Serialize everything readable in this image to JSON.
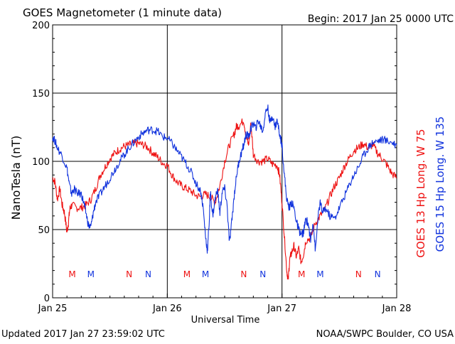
{
  "header": {
    "title": "GOES Magnetometer (1 minute data)",
    "begin": "Begin:  2017 Jan 25 0000 UTC"
  },
  "footer": {
    "updated": "Updated 2017 Jan 27 23:59:02 UTC",
    "credit": "NOAA/SWPC Boulder, CO USA"
  },
  "colors": {
    "goes13": "#ee1111",
    "goes15": "#1133dd",
    "grid": "#000000"
  },
  "chart_data": {
    "type": "line",
    "title": "GOES Magnetometer (1 minute data)",
    "xlabel": "Universal Time",
    "ylabel": "NanoTesla (nT)",
    "xlim": [
      0,
      72
    ],
    "ylim": [
      0,
      200
    ],
    "yticks": [
      0,
      50,
      100,
      150,
      200
    ],
    "xticks": [
      {
        "hour": 0,
        "label": "Jan 25"
      },
      {
        "hour": 24,
        "label": "Jan 26"
      },
      {
        "hour": 48,
        "label": "Jan 27"
      },
      {
        "hour": 72,
        "label": "Jan 28"
      }
    ],
    "grid": true,
    "markers": [
      {
        "hour": 4.1,
        "label": "M",
        "series": 0
      },
      {
        "hour": 8.0,
        "label": "M",
        "series": 1
      },
      {
        "hour": 16.0,
        "label": "N",
        "series": 0
      },
      {
        "hour": 20.0,
        "label": "N",
        "series": 1
      },
      {
        "hour": 28.1,
        "label": "M",
        "series": 0
      },
      {
        "hour": 32.0,
        "label": "M",
        "series": 1
      },
      {
        "hour": 40.0,
        "label": "N",
        "series": 0
      },
      {
        "hour": 44.0,
        "label": "N",
        "series": 1
      },
      {
        "hour": 52.1,
        "label": "M",
        "series": 0
      },
      {
        "hour": 56.0,
        "label": "M",
        "series": 1
      },
      {
        "hour": 64.0,
        "label": "N",
        "series": 0
      },
      {
        "hour": 68.0,
        "label": "N",
        "series": 1
      }
    ],
    "series": [
      {
        "name": "GOES 13 Hp  Long. W 75",
        "points": [
          [
            0,
            88
          ],
          [
            0.5,
            85
          ],
          [
            1,
            72
          ],
          [
            1.5,
            80
          ],
          [
            2,
            68
          ],
          [
            2.5,
            62
          ],
          [
            3,
            48
          ],
          [
            3.3,
            55
          ],
          [
            3.6,
            65
          ],
          [
            4,
            68
          ],
          [
            5,
            66
          ],
          [
            6,
            66
          ],
          [
            7,
            68
          ],
          [
            8,
            72
          ],
          [
            9,
            80
          ],
          [
            10,
            90
          ],
          [
            11,
            96
          ],
          [
            12,
            102
          ],
          [
            13,
            106
          ],
          [
            14,
            109
          ],
          [
            15,
            111
          ],
          [
            16,
            112
          ],
          [
            17,
            113
          ],
          [
            18,
            113
          ],
          [
            19,
            112
          ],
          [
            20,
            110
          ],
          [
            21,
            106
          ],
          [
            22,
            103
          ],
          [
            23,
            99
          ],
          [
            24,
            97
          ],
          [
            25,
            90
          ],
          [
            26,
            85
          ],
          [
            27,
            82
          ],
          [
            28,
            80
          ],
          [
            29,
            78
          ],
          [
            30,
            75
          ],
          [
            31,
            74
          ],
          [
            32,
            76
          ],
          [
            33,
            74
          ],
          [
            34,
            70
          ],
          [
            35,
            82
          ],
          [
            36,
            100
          ],
          [
            37,
            112
          ],
          [
            38,
            120
          ],
          [
            38.5,
            126
          ],
          [
            39,
            126
          ],
          [
            40,
            130
          ],
          [
            40.5,
            118
          ],
          [
            41,
            112
          ],
          [
            41.5,
            128
          ],
          [
            42,
            105
          ],
          [
            43,
            100
          ],
          [
            44,
            100
          ],
          [
            45,
            102
          ],
          [
            46,
            98
          ],
          [
            47,
            97
          ],
          [
            47.5,
            90
          ],
          [
            48,
            70
          ],
          [
            48.5,
            45
          ],
          [
            49,
            20
          ],
          [
            49.3,
            13
          ],
          [
            49.6,
            28
          ],
          [
            50,
            33
          ],
          [
            50.5,
            38
          ],
          [
            51,
            30
          ],
          [
            51.5,
            36
          ],
          [
            52,
            26
          ],
          [
            52.5,
            32
          ],
          [
            53,
            42
          ],
          [
            54,
            44
          ],
          [
            55,
            55
          ],
          [
            56,
            60
          ],
          [
            57,
            65
          ],
          [
            58,
            74
          ],
          [
            59,
            82
          ],
          [
            60,
            88
          ],
          [
            61,
            96
          ],
          [
            62,
            102
          ],
          [
            63,
            108
          ],
          [
            64,
            110
          ],
          [
            65,
            113
          ],
          [
            66,
            110
          ],
          [
            67,
            112
          ],
          [
            68,
            106
          ],
          [
            69,
            102
          ],
          [
            70,
            97
          ],
          [
            71,
            91
          ],
          [
            72,
            88
          ]
        ]
      },
      {
        "name": "GOES 15 Hp  Long. W 135",
        "points": [
          [
            0,
            118
          ],
          [
            0.5,
            115
          ],
          [
            1,
            110
          ],
          [
            2,
            104
          ],
          [
            3,
            95
          ],
          [
            3.5,
            83
          ],
          [
            4,
            76
          ],
          [
            4.5,
            80
          ],
          [
            5,
            77
          ],
          [
            6,
            76
          ],
          [
            6.5,
            70
          ],
          [
            7,
            62
          ],
          [
            7.5,
            53
          ],
          [
            8,
            52
          ],
          [
            8.5,
            62
          ],
          [
            9,
            70
          ],
          [
            10,
            76
          ],
          [
            11,
            82
          ],
          [
            12,
            88
          ],
          [
            13,
            94
          ],
          [
            14,
            100
          ],
          [
            15,
            105
          ],
          [
            16,
            110
          ],
          [
            17,
            114
          ],
          [
            18,
            118
          ],
          [
            19,
            121
          ],
          [
            20,
            123
          ],
          [
            21,
            123
          ],
          [
            22,
            122
          ],
          [
            23,
            118
          ],
          [
            24,
            117
          ],
          [
            25,
            113
          ],
          [
            26,
            108
          ],
          [
            27,
            103
          ],
          [
            28,
            98
          ],
          [
            29,
            92
          ],
          [
            30,
            84
          ],
          [
            31,
            78
          ],
          [
            31.5,
            66
          ],
          [
            32,
            45
          ],
          [
            32.4,
            34
          ],
          [
            32.8,
            58
          ],
          [
            33,
            78
          ],
          [
            33.5,
            60
          ],
          [
            34,
            72
          ],
          [
            34.5,
            80
          ],
          [
            35,
            62
          ],
          [
            35.5,
            78
          ],
          [
            36,
            80
          ],
          [
            36.5,
            68
          ],
          [
            37,
            40
          ],
          [
            37.5,
            56
          ],
          [
            38,
            75
          ],
          [
            38.5,
            90
          ],
          [
            39,
            100
          ],
          [
            39.5,
            106
          ],
          [
            40,
            112
          ],
          [
            40.5,
            120
          ],
          [
            41,
            118
          ],
          [
            41.5,
            124
          ],
          [
            42,
            128
          ],
          [
            42.5,
            124
          ],
          [
            43,
            130
          ],
          [
            43.5,
            126
          ],
          [
            44,
            122
          ],
          [
            44.5,
            135
          ],
          [
            45,
            140
          ],
          [
            45.5,
            128
          ],
          [
            46,
            134
          ],
          [
            46.5,
            125
          ],
          [
            47,
            130
          ],
          [
            47.5,
            120
          ],
          [
            48,
            112
          ],
          [
            48.5,
            90
          ],
          [
            49,
            72
          ],
          [
            49.5,
            66
          ],
          [
            50,
            70
          ],
          [
            50.5,
            66
          ],
          [
            51,
            56
          ],
          [
            51.5,
            50
          ],
          [
            52,
            46
          ],
          [
            52.5,
            48
          ],
          [
            53,
            58
          ],
          [
            53.5,
            54
          ],
          [
            54,
            42
          ],
          [
            54.5,
            56
          ],
          [
            55,
            34
          ],
          [
            55.5,
            58
          ],
          [
            56,
            70
          ],
          [
            56.5,
            62
          ],
          [
            57,
            66
          ],
          [
            58,
            60
          ],
          [
            59,
            58
          ],
          [
            60,
            66
          ],
          [
            61,
            74
          ],
          [
            62,
            82
          ],
          [
            63,
            90
          ],
          [
            64,
            96
          ],
          [
            65,
            104
          ],
          [
            66,
            110
          ],
          [
            67,
            114
          ],
          [
            68,
            115
          ],
          [
            69,
            116
          ],
          [
            70,
            115
          ],
          [
            71,
            114
          ],
          [
            72,
            112
          ]
        ]
      }
    ]
  }
}
